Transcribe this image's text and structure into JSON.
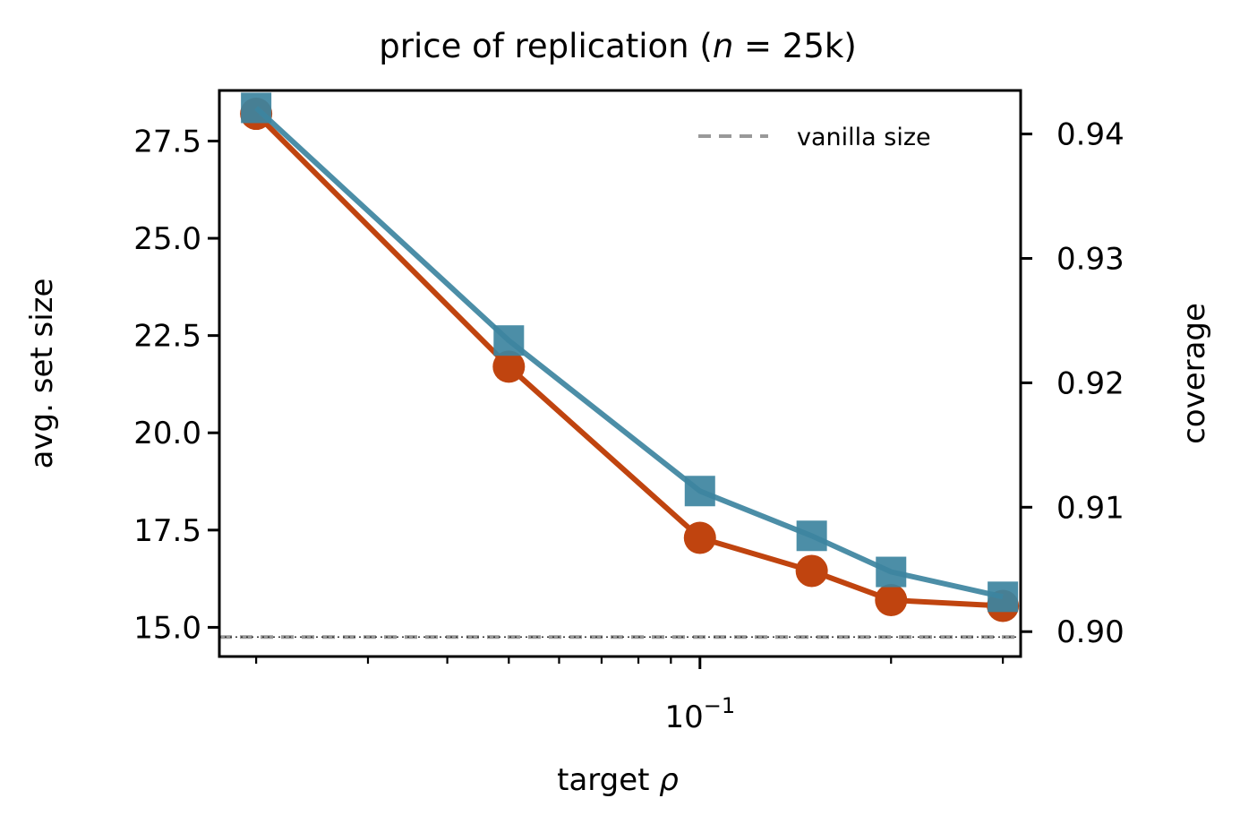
{
  "chart_data": {
    "type": "line",
    "title": "price of replication (n = 25k)",
    "xlabel": "target ρ",
    "ylabel_left": "avg. set size",
    "ylabel_right": "coverage",
    "xscale": "log",
    "xlim": [
      0.0175,
      0.32
    ],
    "x_tick_labels": [
      "10^{-1}"
    ],
    "ylim_left": [
      14.25,
      28.8
    ],
    "yticks_left": [
      15.0,
      17.5,
      20.0,
      22.5,
      25.0,
      27.5
    ],
    "ylim_right": [
      0.898,
      0.9435
    ],
    "yticks_right": [
      0.9,
      0.91,
      0.92,
      0.93,
      0.94
    ],
    "x": [
      0.02,
      0.05,
      0.1,
      0.15,
      0.2,
      0.3
    ],
    "series": [
      {
        "axis": "left",
        "color": "#c0440f",
        "marker": "circle",
        "values": [
          28.2,
          21.7,
          17.3,
          16.45,
          15.7,
          15.55
        ]
      },
      {
        "axis": "right",
        "color": "#3d84a0",
        "marker": "square",
        "values": [
          0.9421,
          0.9234,
          0.9113,
          0.9077,
          0.9048,
          0.9028
        ]
      }
    ],
    "reference_line": {
      "label": "vanilla size",
      "value": 14.75,
      "color": "#999999",
      "style": "dashed"
    },
    "legend": {
      "placement": "top-right",
      "entries": [
        "vanilla size"
      ]
    },
    "colors": {
      "right_axis_label": "#2a6f8a"
    }
  }
}
